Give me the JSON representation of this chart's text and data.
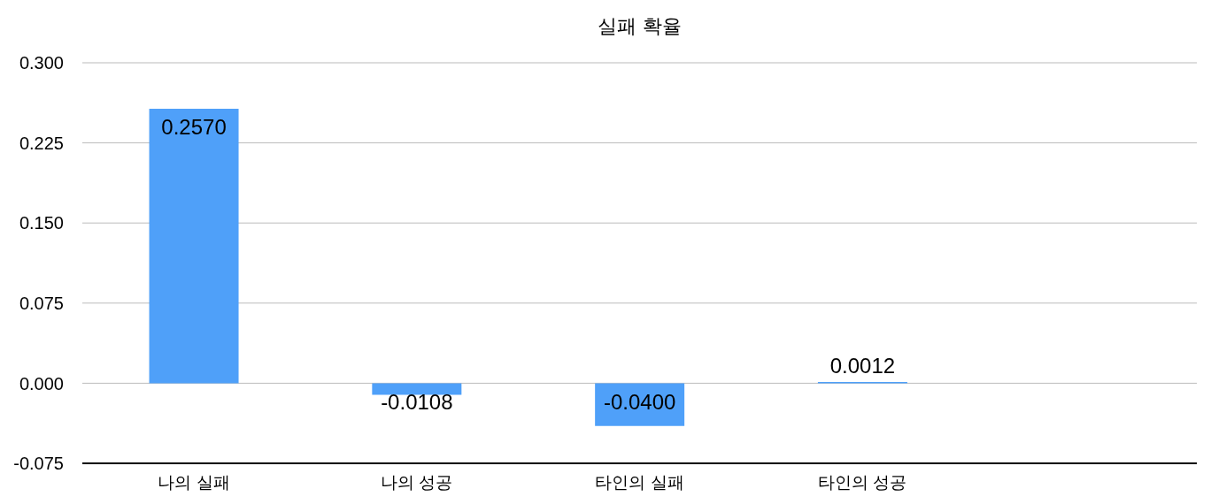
{
  "chart_data": {
    "type": "bar",
    "title": "실패 확율",
    "categories": [
      "나의 실패",
      "나의 성공",
      "타인의 실패",
      "타인의 성공",
      null
    ],
    "values": [
      0.257,
      -0.0108,
      -0.04,
      0.0012,
      null
    ],
    "value_labels": [
      "0.2570",
      "-0.0108",
      "-0.0400",
      "0.0012",
      null
    ],
    "color": "#4fa0f9",
    "ylim": [
      -0.075,
      0.3
    ],
    "yticks": [
      {
        "value": 0.3,
        "label": "0.300"
      },
      0.225,
      {
        "value": 0.15,
        "label": "0.150"
      },
      0.075,
      {
        "value": 0,
        "label": "0.000"
      },
      -0.075
    ],
    "grid": "y"
  }
}
